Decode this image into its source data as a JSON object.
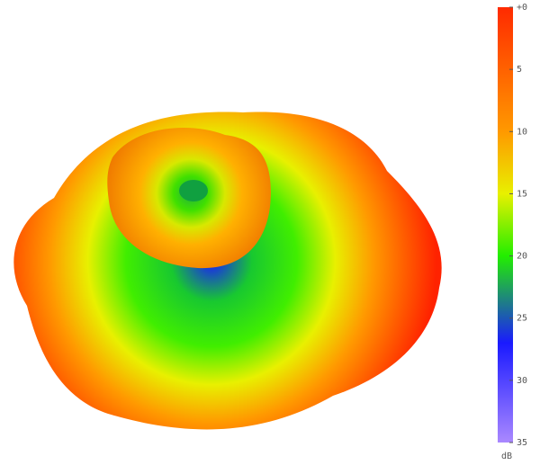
{
  "chart_data": {
    "type": "surface3d",
    "colorbar": {
      "label": "dB",
      "lim": [
        0,
        35
      ],
      "ticks": [
        {
          "value": 0,
          "label": "+0"
        },
        5,
        10,
        15,
        20,
        25,
        30,
        35
      ],
      "color_stops": [
        {
          "value": 0,
          "color": "#ff2a00"
        },
        {
          "value": 10,
          "color": "#ff9900"
        },
        {
          "value": 15,
          "color": "#e8f000"
        },
        {
          "value": 20,
          "color": "#22ee00"
        },
        {
          "value": 27,
          "color": "#1a1aff"
        },
        {
          "value": 35,
          "color": "#aa88ff"
        }
      ]
    }
  }
}
